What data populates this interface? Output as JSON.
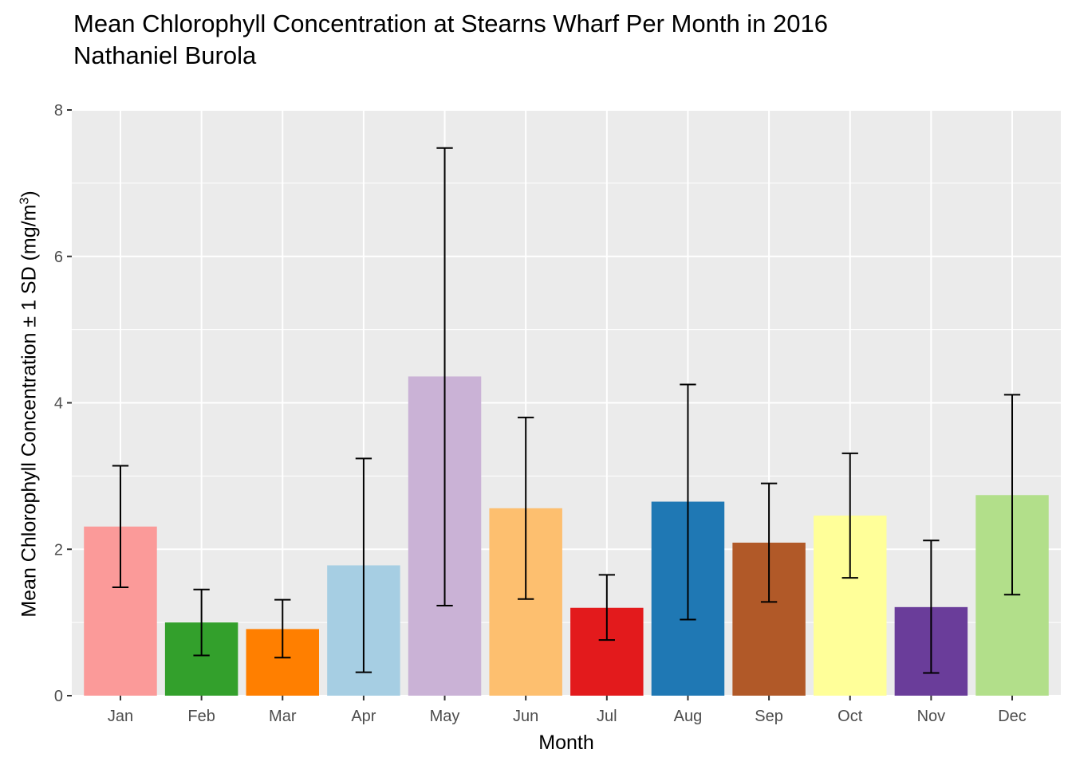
{
  "chart_data": {
    "type": "bar",
    "title": "Mean Chlorophyll Concentration at Stearns Wharf Per Month in 2016",
    "subtitle": "Nathaniel Burola",
    "xlabel": "Month",
    "ylabel": "Mean Chlorophyll Concentration ± 1 SD (mg/m³)",
    "ylim": [
      0,
      8
    ],
    "yticks": [
      0,
      2,
      4,
      6,
      8
    ],
    "grid": true,
    "categories": [
      "Jan",
      "Feb",
      "Mar",
      "Apr",
      "May",
      "Jun",
      "Jul",
      "Aug",
      "Sep",
      "Oct",
      "Nov",
      "Dec"
    ],
    "values": [
      2.31,
      1.0,
      0.91,
      1.78,
      4.36,
      2.56,
      1.2,
      2.65,
      2.09,
      2.46,
      1.21,
      2.74
    ],
    "error_lower": [
      1.48,
      0.55,
      0.52,
      0.32,
      1.23,
      1.32,
      0.76,
      1.04,
      1.28,
      1.61,
      0.31,
      1.38
    ],
    "error_upper": [
      3.14,
      1.45,
      1.31,
      3.24,
      7.48,
      3.8,
      1.65,
      4.25,
      2.9,
      3.31,
      2.12,
      4.11
    ],
    "colors": [
      "#FB9A99",
      "#33A02C",
      "#FF7F00",
      "#A6CEE3",
      "#CAB2D6",
      "#FDBF6F",
      "#E31A1C",
      "#1F78B4",
      "#B15928",
      "#FFFF99",
      "#6A3D9A",
      "#B2DF8A"
    ]
  }
}
